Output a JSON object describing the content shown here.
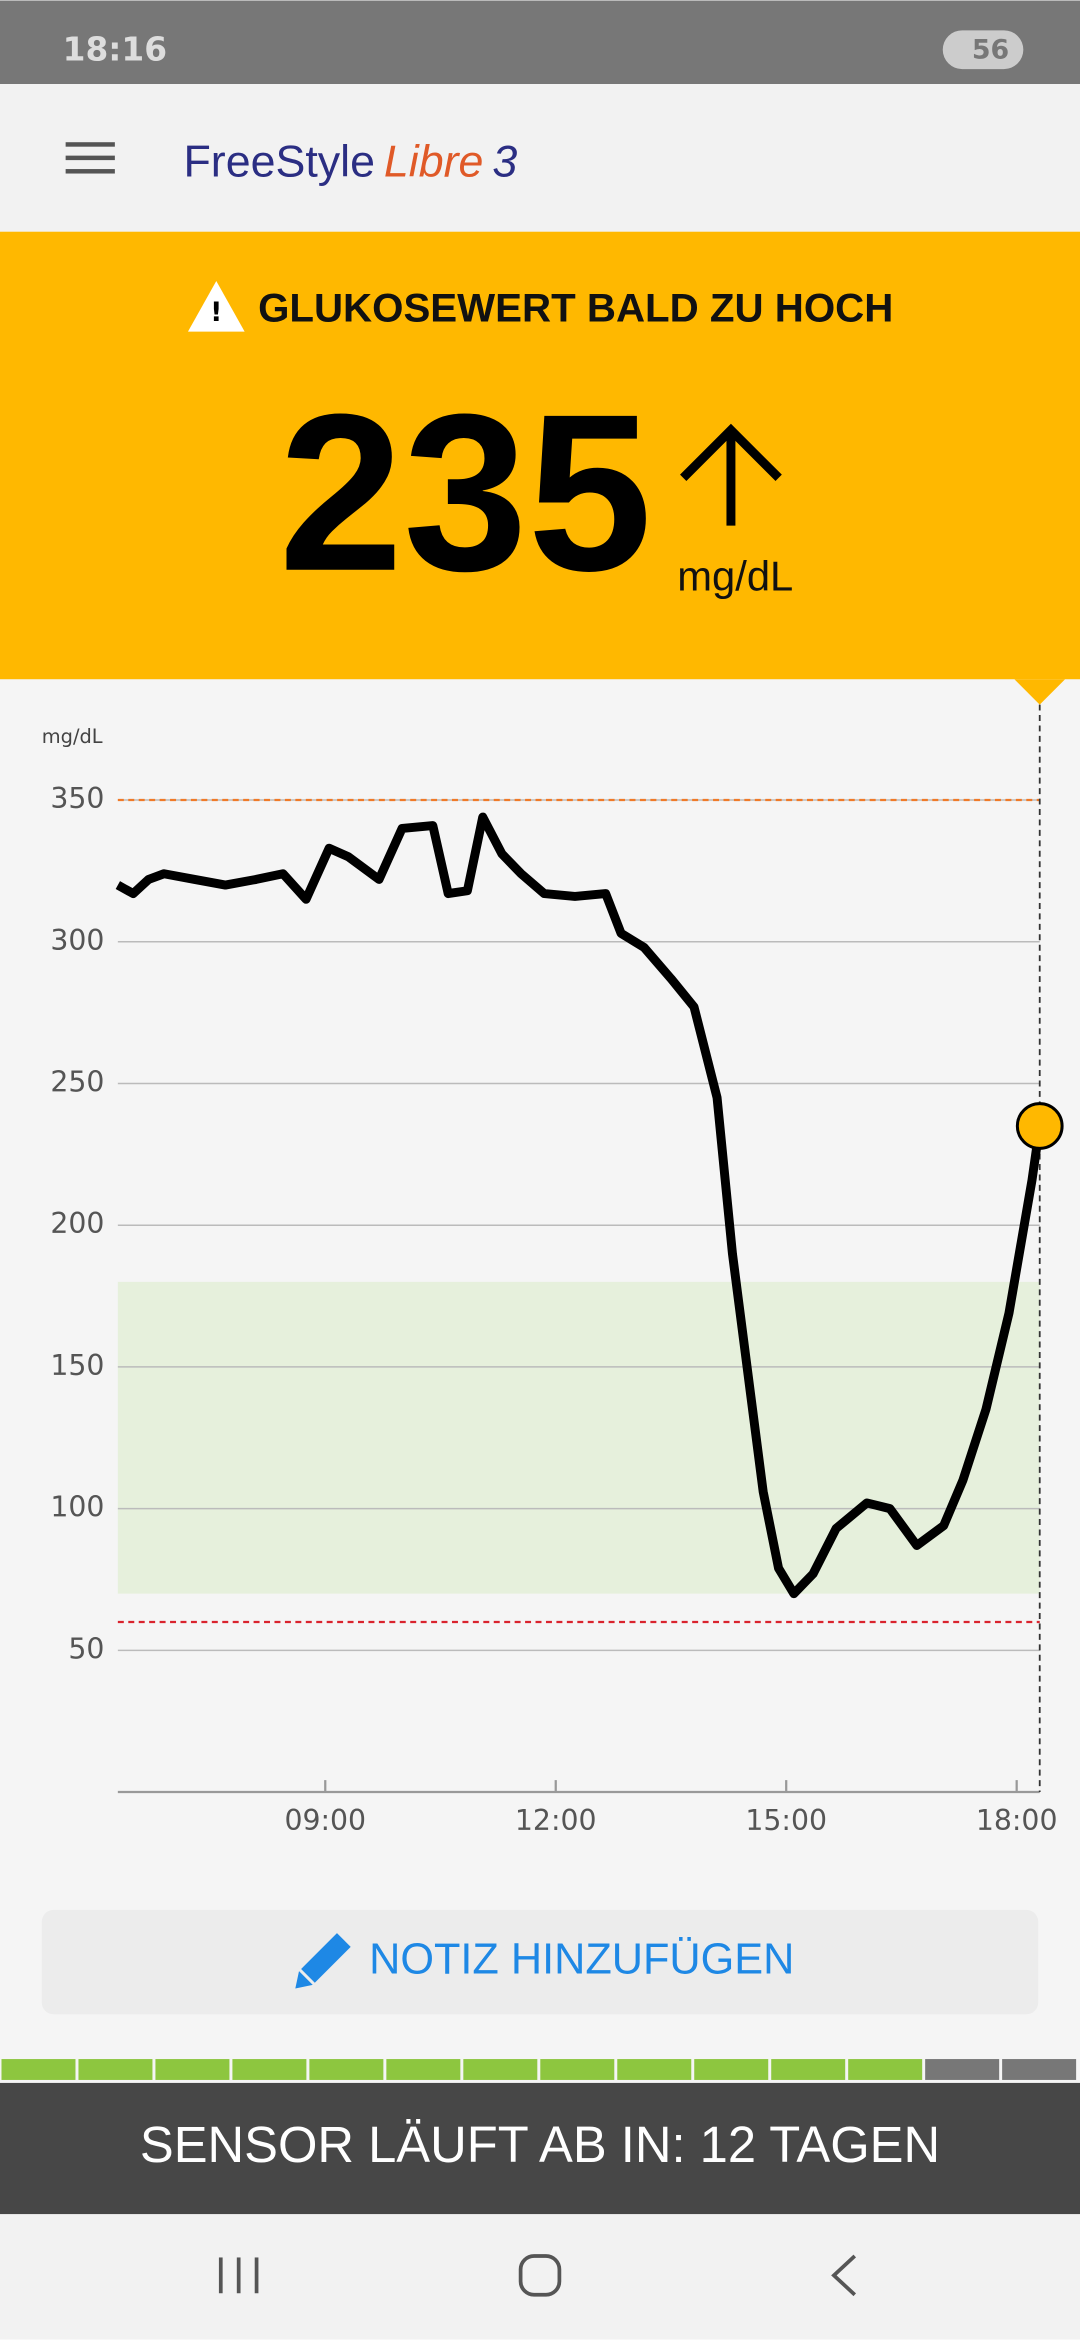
{
  "status_bar": {
    "time": "18:16",
    "battery": "56"
  },
  "header": {
    "brand": "FreeStyle",
    "product": "Libre",
    "version": "3"
  },
  "alert": {
    "title": "GLUKOSEWERT BALD ZU HOCH",
    "value": 235,
    "unit": "mg/dL"
  },
  "chart_data": {
    "type": "line",
    "y_label": "mg/dL",
    "x": [
      6.3,
      6.5,
      6.7,
      6.9,
      7.3,
      7.7,
      8.1,
      8.45,
      8.75,
      9.05,
      9.3,
      9.7,
      10.0,
      10.4,
      10.6,
      10.85,
      11.05,
      11.3,
      11.55,
      11.85,
      12.25,
      12.65,
      12.85,
      13.15,
      13.5,
      13.8,
      14.1,
      14.3,
      14.5,
      14.7,
      14.9,
      15.1,
      15.35,
      15.65,
      16.05,
      16.35,
      16.7,
      17.05,
      17.3,
      17.6,
      17.9,
      18.2,
      18.3
    ],
    "values": [
      320,
      317,
      322,
      324,
      322,
      320,
      322,
      324,
      315,
      333,
      330,
      322,
      340,
      341,
      317,
      318,
      344,
      331,
      324,
      317,
      316,
      317,
      303,
      298,
      287,
      277,
      245,
      190,
      148,
      106,
      79,
      70,
      77,
      93,
      102,
      100,
      87,
      94,
      110,
      135,
      169,
      216,
      235
    ],
    "color": "#000000",
    "point_color": "#ffb800",
    "target_range": [
      70,
      180
    ],
    "high_limit": 350,
    "low_limit": 60,
    "xlim": [
      6.3,
      18.3
    ],
    "xticks": [
      {
        "value": 9,
        "label": "09:00"
      },
      {
        "value": 12,
        "label": "12:00"
      },
      {
        "value": 15,
        "label": "15:00"
      },
      {
        "value": 18,
        "label": "18:00"
      }
    ],
    "ylim": [
      0,
      370
    ],
    "yticks": [
      50,
      100,
      150,
      200,
      250,
      300,
      350
    ],
    "grid": true
  },
  "note_button": {
    "label": "NOTIZ HINZUFÜGEN"
  },
  "sensor": {
    "text": "SENSOR LÄUFT AB IN: 12 TAGEN"
  }
}
